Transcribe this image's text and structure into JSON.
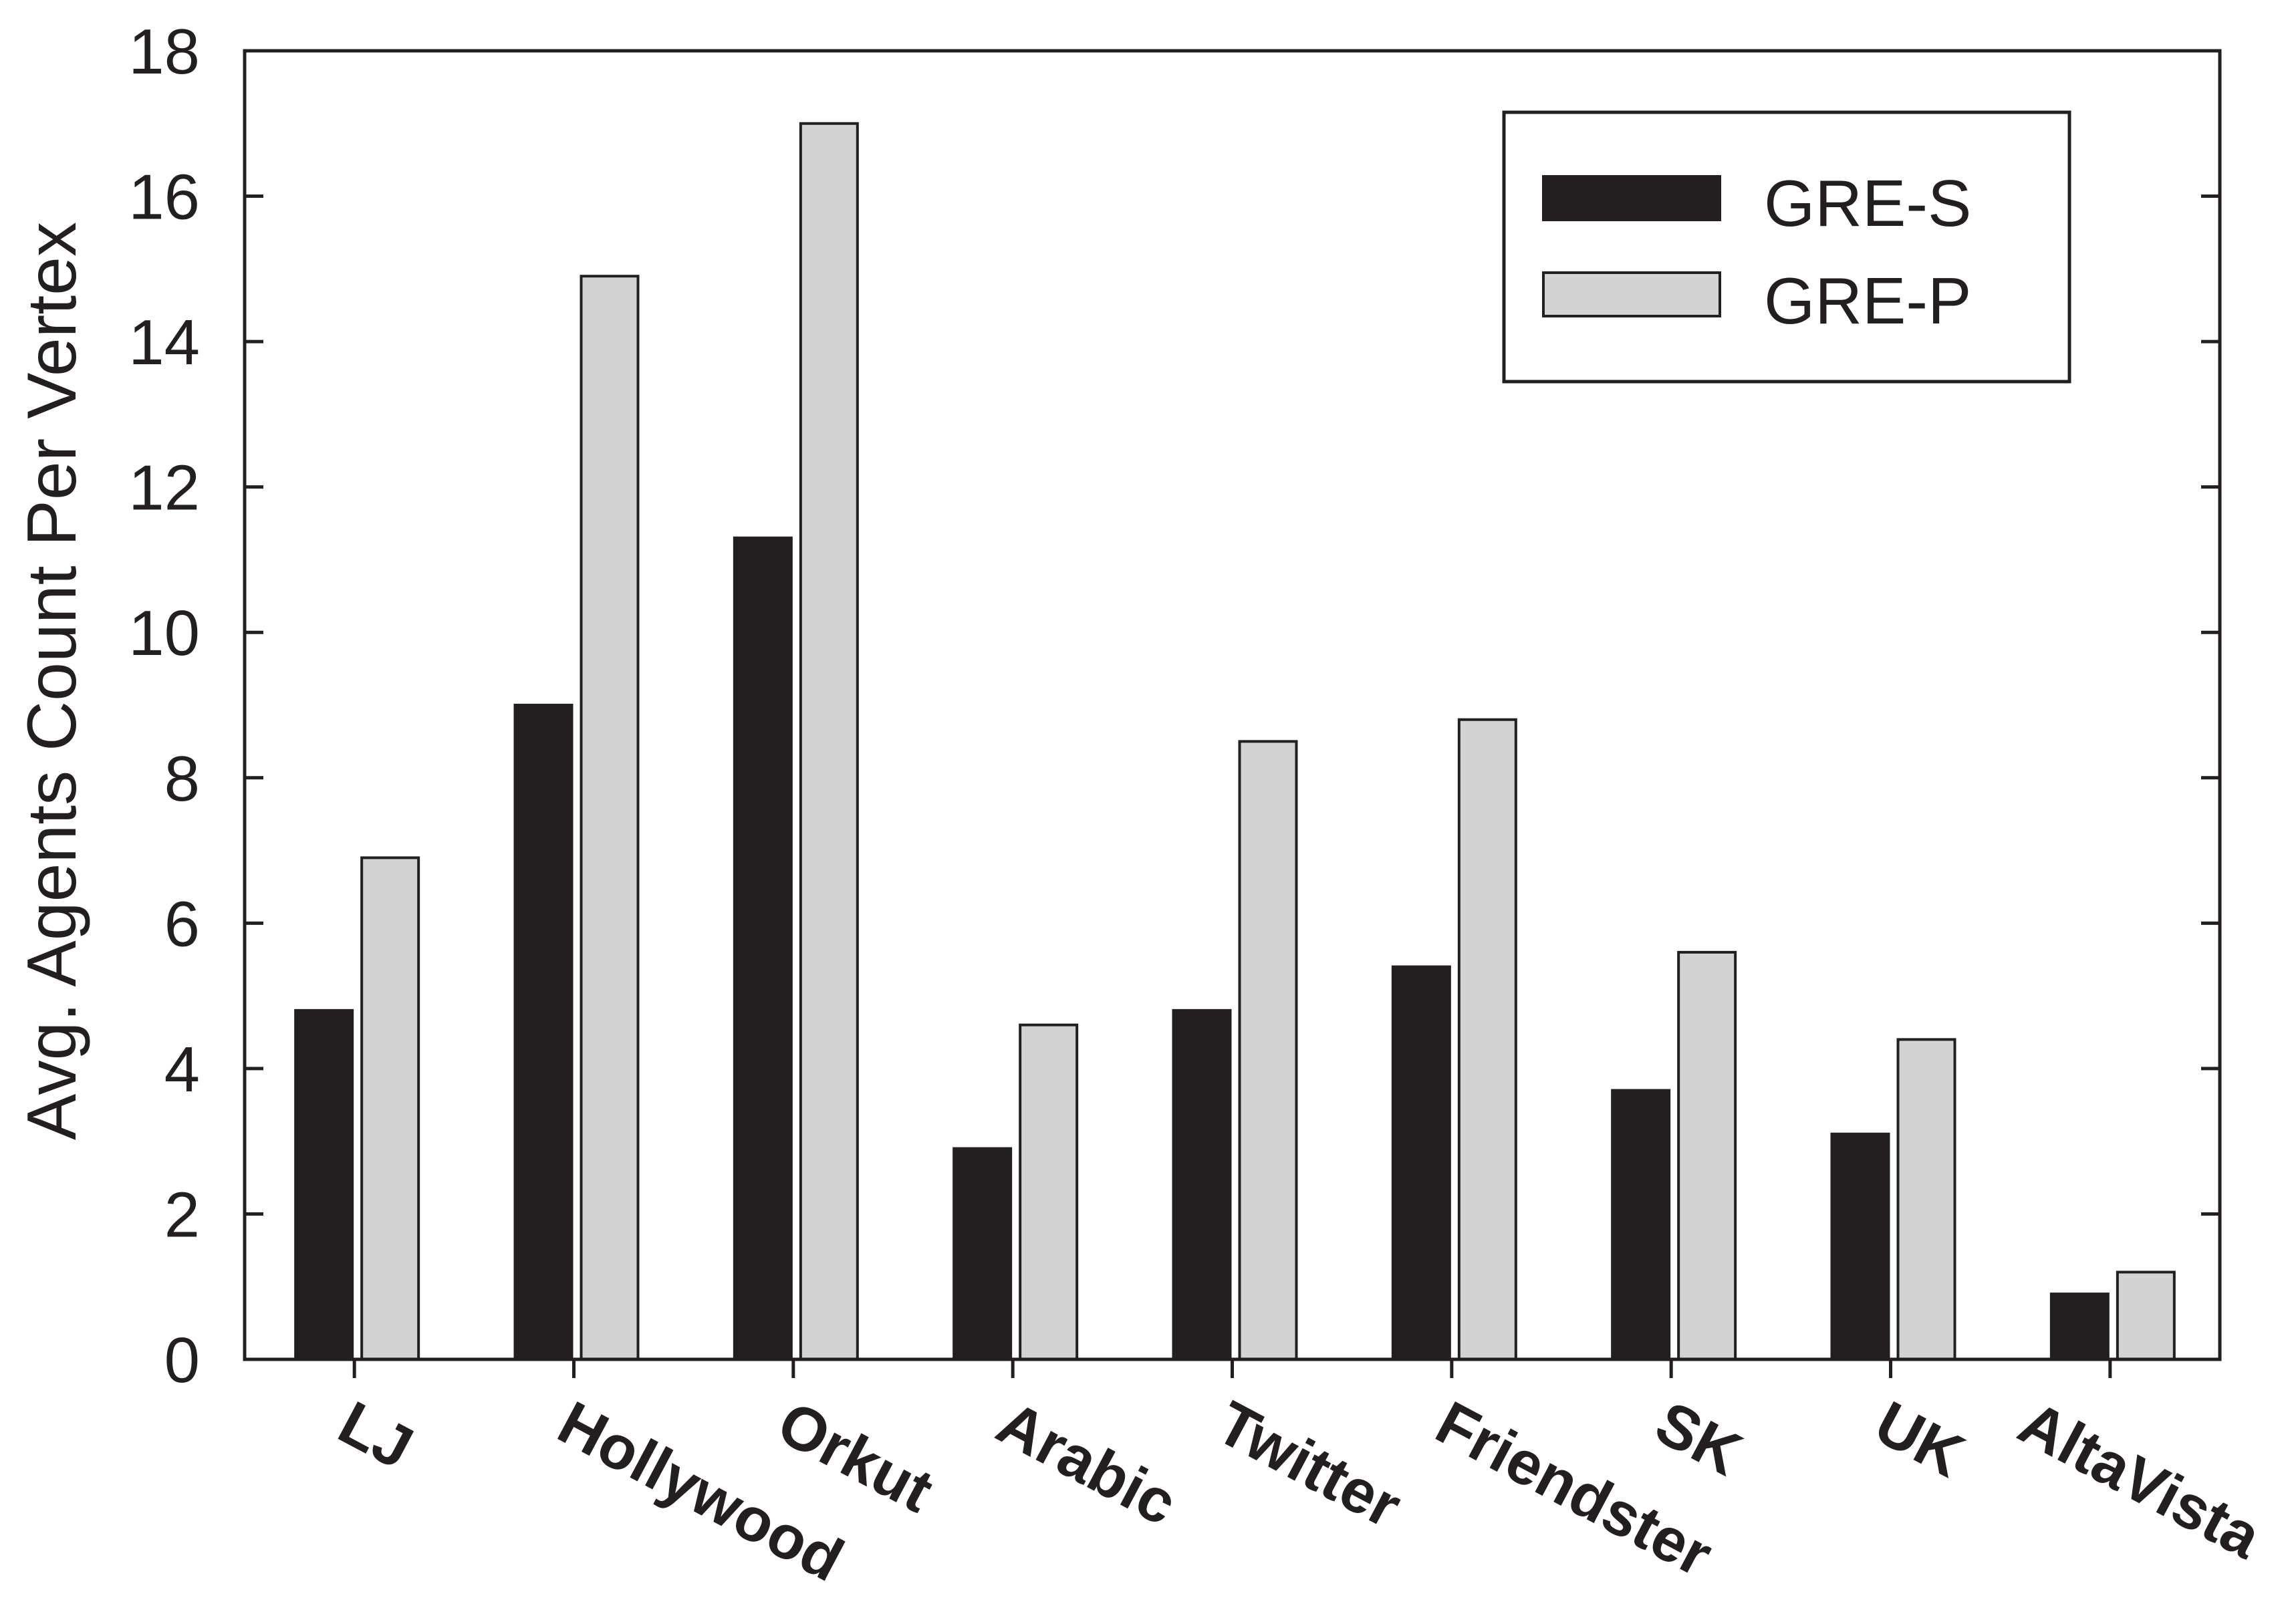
{
  "chart_data": {
    "type": "bar",
    "categories": [
      "LJ",
      "Hollywood",
      "Orkut",
      "Arabic",
      "Twitter",
      "Friendster",
      "SK",
      "UK",
      "AltaVista"
    ],
    "series": [
      {
        "name": "GRE-S",
        "color": "#231f20",
        "values": [
          4.8,
          9.0,
          11.3,
          2.9,
          4.8,
          5.4,
          3.7,
          3.1,
          0.9
        ]
      },
      {
        "name": "GRE-P",
        "color": "#d3d3d3",
        "values": [
          6.9,
          14.9,
          17.0,
          4.6,
          8.5,
          8.8,
          5.6,
          4.4,
          1.2
        ]
      }
    ],
    "ylabel": "Avg. Agents Count Per Vertex",
    "ylim": [
      0,
      18
    ],
    "yticks": [
      0,
      2,
      4,
      6,
      8,
      10,
      12,
      14,
      16,
      18
    ],
    "grid": false,
    "legend": "top-right"
  }
}
